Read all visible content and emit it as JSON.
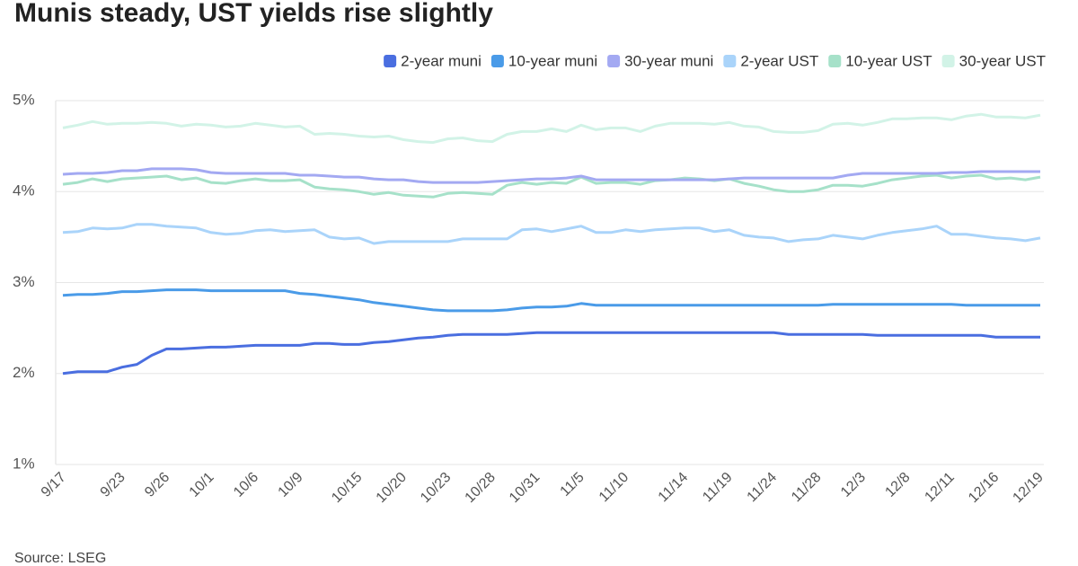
{
  "chart_data": {
    "type": "line",
    "title": "Munis steady, UST yields rise slightly",
    "source": "Source: LSEG",
    "categories": [
      "9/17",
      null,
      null,
      null,
      "9/23",
      null,
      null,
      "9/26",
      null,
      null,
      "10/1",
      null,
      null,
      "10/6",
      null,
      null,
      "10/9",
      null,
      null,
      null,
      "10/15",
      null,
      null,
      "10/20",
      null,
      null,
      "10/23",
      null,
      null,
      "10/28",
      null,
      null,
      "10/31",
      null,
      null,
      "11/5",
      null,
      null,
      "11/10",
      null,
      null,
      null,
      "11/14",
      null,
      null,
      "11/19",
      null,
      null,
      "11/24",
      null,
      null,
      "11/28",
      null,
      null,
      "12/3",
      null,
      null,
      "12/8",
      null,
      null,
      "12/11",
      null,
      null,
      "12/16",
      null,
      null,
      "12/19"
    ],
    "ylim": [
      1,
      5
    ],
    "yticks": [
      {
        "value": 1,
        "label": "1%"
      },
      {
        "value": 2,
        "label": "2%"
      },
      {
        "value": 3,
        "label": "3%"
      },
      {
        "value": 4,
        "label": "4%"
      },
      {
        "value": 5,
        "label": "5%"
      }
    ],
    "grid": true,
    "legend": "top-right",
    "series": [
      {
        "name": "2-year muni",
        "color": "#4a6ee0",
        "values": [
          2.0,
          2.02,
          2.02,
          2.02,
          2.07,
          2.1,
          2.2,
          2.27,
          2.27,
          2.28,
          2.29,
          2.29,
          2.3,
          2.31,
          2.31,
          2.31,
          2.31,
          2.33,
          2.33,
          2.32,
          2.32,
          2.34,
          2.35,
          2.37,
          2.39,
          2.4,
          2.42,
          2.43,
          2.43,
          2.43,
          2.43,
          2.44,
          2.45,
          2.45,
          2.45,
          2.45,
          2.45,
          2.45,
          2.45,
          2.45,
          2.45,
          2.45,
          2.45,
          2.45,
          2.45,
          2.45,
          2.45,
          2.45,
          2.45,
          2.43,
          2.43,
          2.43,
          2.43,
          2.43,
          2.43,
          2.42,
          2.42,
          2.42,
          2.42,
          2.42,
          2.42,
          2.42,
          2.42,
          2.4,
          2.4,
          2.4,
          2.4
        ]
      },
      {
        "name": "10-year muni",
        "color": "#4a9be8",
        "values": [
          2.86,
          2.87,
          2.87,
          2.88,
          2.9,
          2.9,
          2.91,
          2.92,
          2.92,
          2.92,
          2.91,
          2.91,
          2.91,
          2.91,
          2.91,
          2.91,
          2.88,
          2.87,
          2.85,
          2.83,
          2.81,
          2.78,
          2.76,
          2.74,
          2.72,
          2.7,
          2.69,
          2.69,
          2.69,
          2.69,
          2.7,
          2.72,
          2.73,
          2.73,
          2.74,
          2.77,
          2.75,
          2.75,
          2.75,
          2.75,
          2.75,
          2.75,
          2.75,
          2.75,
          2.75,
          2.75,
          2.75,
          2.75,
          2.75,
          2.75,
          2.75,
          2.75,
          2.76,
          2.76,
          2.76,
          2.76,
          2.76,
          2.76,
          2.76,
          2.76,
          2.76,
          2.75,
          2.75,
          2.75,
          2.75,
          2.75,
          2.75
        ]
      },
      {
        "name": "30-year muni",
        "color": "#a3a9f2",
        "values": [
          4.19,
          4.2,
          4.2,
          4.21,
          4.23,
          4.23,
          4.25,
          4.25,
          4.25,
          4.24,
          4.21,
          4.2,
          4.2,
          4.2,
          4.2,
          4.2,
          4.18,
          4.18,
          4.17,
          4.16,
          4.16,
          4.14,
          4.13,
          4.13,
          4.11,
          4.1,
          4.1,
          4.1,
          4.1,
          4.11,
          4.12,
          4.13,
          4.14,
          4.14,
          4.15,
          4.17,
          4.13,
          4.13,
          4.13,
          4.13,
          4.13,
          4.13,
          4.13,
          4.13,
          4.13,
          4.14,
          4.15,
          4.15,
          4.15,
          4.15,
          4.15,
          4.15,
          4.15,
          4.18,
          4.2,
          4.2,
          4.2,
          4.2,
          4.2,
          4.2,
          4.21,
          4.21,
          4.22,
          4.22,
          4.22,
          4.22,
          4.22
        ]
      },
      {
        "name": "2-year UST",
        "color": "#aad4fa",
        "values": [
          3.55,
          3.56,
          3.6,
          3.59,
          3.6,
          3.64,
          3.64,
          3.62,
          3.61,
          3.6,
          3.55,
          3.53,
          3.54,
          3.57,
          3.58,
          3.56,
          3.57,
          3.58,
          3.5,
          3.48,
          3.49,
          3.43,
          3.45,
          3.45,
          3.45,
          3.45,
          3.45,
          3.48,
          3.48,
          3.48,
          3.48,
          3.58,
          3.59,
          3.56,
          3.59,
          3.62,
          3.55,
          3.55,
          3.58,
          3.56,
          3.58,
          3.59,
          3.6,
          3.6,
          3.56,
          3.58,
          3.52,
          3.5,
          3.49,
          3.45,
          3.47,
          3.48,
          3.52,
          3.5,
          3.48,
          3.52,
          3.55,
          3.57,
          3.59,
          3.62,
          3.53,
          3.53,
          3.51,
          3.49,
          3.48,
          3.46,
          3.49
        ]
      },
      {
        "name": "10-year UST",
        "color": "#a6e1c9",
        "values": [
          4.08,
          4.1,
          4.14,
          4.11,
          4.14,
          4.15,
          4.16,
          4.17,
          4.13,
          4.15,
          4.1,
          4.09,
          4.12,
          4.14,
          4.12,
          4.12,
          4.13,
          4.05,
          4.03,
          4.02,
          4.0,
          3.97,
          3.99,
          3.96,
          3.95,
          3.94,
          3.98,
          3.99,
          3.98,
          3.97,
          4.07,
          4.1,
          4.08,
          4.1,
          4.09,
          4.16,
          4.09,
          4.1,
          4.1,
          4.08,
          4.12,
          4.13,
          4.15,
          4.14,
          4.12,
          4.14,
          4.09,
          4.06,
          4.02,
          4.0,
          4.0,
          4.02,
          4.07,
          4.07,
          4.06,
          4.09,
          4.13,
          4.15,
          4.17,
          4.18,
          4.15,
          4.17,
          4.18,
          4.14,
          4.15,
          4.13,
          4.16
        ]
      },
      {
        "name": "30-year UST",
        "color": "#d2f3e7",
        "values": [
          4.7,
          4.73,
          4.77,
          4.74,
          4.75,
          4.75,
          4.76,
          4.75,
          4.72,
          4.74,
          4.73,
          4.71,
          4.72,
          4.75,
          4.73,
          4.71,
          4.72,
          4.63,
          4.64,
          4.63,
          4.61,
          4.6,
          4.61,
          4.57,
          4.55,
          4.54,
          4.58,
          4.59,
          4.56,
          4.55,
          4.63,
          4.66,
          4.66,
          4.69,
          4.66,
          4.73,
          4.68,
          4.7,
          4.7,
          4.66,
          4.72,
          4.75,
          4.75,
          4.75,
          4.74,
          4.76,
          4.72,
          4.71,
          4.66,
          4.65,
          4.65,
          4.67,
          4.74,
          4.75,
          4.73,
          4.76,
          4.8,
          4.8,
          4.81,
          4.81,
          4.79,
          4.83,
          4.85,
          4.82,
          4.82,
          4.81,
          4.84
        ]
      }
    ]
  }
}
